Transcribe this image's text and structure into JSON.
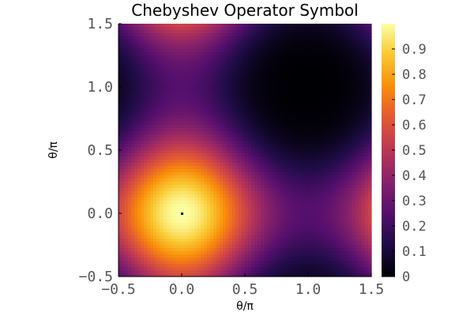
{
  "chart_data": {
    "type": "heatmap",
    "title": "Chebyshev Operator Symbol",
    "xlabel": "θ/π",
    "ylabel": "θ/π",
    "xlim": [
      -0.5,
      1.5
    ],
    "ylim": [
      -0.5,
      1.5
    ],
    "x_ticks": [
      "−0.5",
      "0.0",
      "0.5",
      "1.0",
      "1.5"
    ],
    "x_tick_values": [
      -0.5,
      0.0,
      0.5,
      1.0,
      1.5
    ],
    "y_ticks": [
      "−0.5",
      "0.0",
      "0.5",
      "1.0",
      "1.5"
    ],
    "y_tick_values": [
      -0.5,
      0.0,
      0.5,
      1.0,
      1.5
    ],
    "colorbar": {
      "ticks": [
        "0",
        "0.1",
        "0.2",
        "0.3",
        "0.4",
        "0.5",
        "0.6",
        "0.7",
        "0.8",
        "0.9"
      ],
      "tick_values": [
        0,
        0.1,
        0.2,
        0.3,
        0.4,
        0.5,
        0.6,
        0.7,
        0.8,
        0.9
      ],
      "range": [
        0,
        1
      ],
      "colormap": "inferno"
    },
    "function_description": "0.25 * (cos(pi*x) + cos(pi*y) + 2)^2 / 4",
    "marker": {
      "x": 0.0,
      "y": 0.0
    },
    "grid": false
  }
}
